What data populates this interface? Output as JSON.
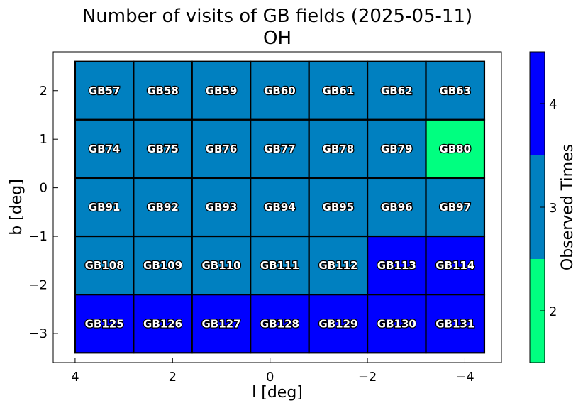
{
  "title_line1": "Number of visits of GB fields (2025-05-11)",
  "title_line2": "OH",
  "chart_data": {
    "type": "heatmap",
    "title": "Number of visits of GB fields (2025-05-11)",
    "subtitle": "OH",
    "xlabel": "l [deg]",
    "ylabel": "b [deg]",
    "xlim": [
      4.45,
      -4.75
    ],
    "ylim": [
      -3.6,
      2.8
    ],
    "x_ticks": [
      "4",
      "2",
      "0",
      "−2",
      "−4"
    ],
    "x_tick_values": [
      4,
      2,
      0,
      -2,
      -4
    ],
    "y_ticks": [
      "2",
      "1",
      "0",
      "−1",
      "−2",
      "−3"
    ],
    "y_tick_values": [
      2,
      1,
      0,
      -1,
      -2,
      -3
    ],
    "column_centers_l": [
      3.4,
      2.2,
      1.0,
      -0.2,
      -1.4,
      -2.6,
      -3.8
    ],
    "row_centers_b": [
      2.0,
      0.8,
      -0.4,
      -1.6,
      -2.8
    ],
    "cell_width_deg": 1.2,
    "cell_height_deg": 1.2,
    "rows": [
      {
        "fields": [
          "GB57",
          "GB58",
          "GB59",
          "GB60",
          "GB61",
          "GB62",
          "GB63"
        ],
        "visits": [
          3,
          3,
          3,
          3,
          3,
          3,
          3
        ]
      },
      {
        "fields": [
          "GB74",
          "GB75",
          "GB76",
          "GB77",
          "GB78",
          "GB79",
          "GB80"
        ],
        "visits": [
          3,
          3,
          3,
          3,
          3,
          3,
          2
        ]
      },
      {
        "fields": [
          "GB91",
          "GB92",
          "GB93",
          "GB94",
          "GB95",
          "GB96",
          "GB97"
        ],
        "visits": [
          3,
          3,
          3,
          3,
          3,
          3,
          3
        ]
      },
      {
        "fields": [
          "GB108",
          "GB109",
          "GB110",
          "GB111",
          "GB112",
          "GB113",
          "GB114"
        ],
        "visits": [
          3,
          3,
          3,
          3,
          3,
          4,
          4
        ]
      },
      {
        "fields": [
          "GB125",
          "GB126",
          "GB127",
          "GB128",
          "GB129",
          "GB130",
          "GB131"
        ],
        "visits": [
          4,
          4,
          4,
          4,
          4,
          4,
          4
        ]
      }
    ],
    "colorbar": {
      "label": "Observed Times",
      "levels": [
        2,
        3,
        4
      ],
      "tick_labels": [
        "2",
        "3",
        "4"
      ],
      "colors": {
        "2": "#00ff80",
        "3": "#0080c0",
        "4": "#0000ff"
      }
    },
    "grid": false
  }
}
